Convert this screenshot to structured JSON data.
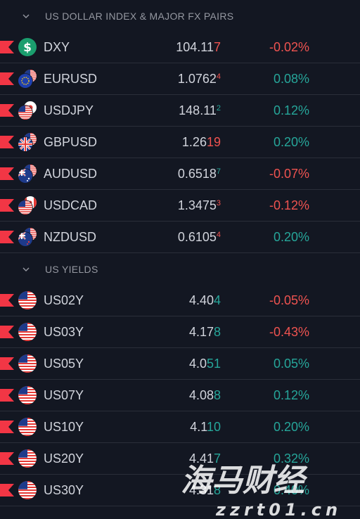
{
  "sections": [
    {
      "title": "US DOLLAR INDEX & MAJOR FX PAIRS",
      "rows": [
        {
          "symbol": "DXY",
          "icon": "dollar-icon",
          "p_main": "104.11",
          "p_last": "7",
          "p_sup": false,
          "last_dir": "down",
          "change": "-0.02%",
          "dir": "down"
        },
        {
          "symbol": "EURUSD",
          "icon": "eu-us-flag-icon",
          "p_main": "1.0762",
          "p_last": "4",
          "p_sup": true,
          "last_dir": "down",
          "change": "0.08%",
          "dir": "up"
        },
        {
          "symbol": "USDJPY",
          "icon": "us-jp-flag-icon",
          "p_main": "148.11",
          "p_last": "2",
          "p_sup": true,
          "last_dir": "up",
          "change": "0.12%",
          "dir": "up"
        },
        {
          "symbol": "GBPUSD",
          "icon": "gb-us-flag-icon",
          "p_main": "1.26",
          "p_last": "19",
          "p_sup": false,
          "last_dir": "down",
          "change": "0.20%",
          "dir": "up"
        },
        {
          "symbol": "AUDUSD",
          "icon": "au-us-flag-icon",
          "p_main": "0.6518",
          "p_last": "7",
          "p_sup": true,
          "last_dir": "up",
          "change": "-0.07%",
          "dir": "down"
        },
        {
          "symbol": "USDCAD",
          "icon": "us-ca-flag-icon",
          "p_main": "1.3475",
          "p_last": "3",
          "p_sup": true,
          "last_dir": "down",
          "change": "-0.12%",
          "dir": "down"
        },
        {
          "symbol": "NZDUSD",
          "icon": "nz-us-flag-icon",
          "p_main": "0.6105",
          "p_last": "4",
          "p_sup": true,
          "last_dir": "down",
          "change": "0.20%",
          "dir": "up"
        }
      ]
    },
    {
      "title": "US YIELDS",
      "rows": [
        {
          "symbol": "US02Y",
          "icon": "us-flag-icon",
          "p_main": "4.40",
          "p_last": "4",
          "p_sup": false,
          "last_dir": "up",
          "change": "-0.05%",
          "dir": "down"
        },
        {
          "symbol": "US03Y",
          "icon": "us-flag-icon",
          "p_main": "4.17",
          "p_last": "8",
          "p_sup": false,
          "last_dir": "up",
          "change": "-0.43%",
          "dir": "down"
        },
        {
          "symbol": "US05Y",
          "icon": "us-flag-icon",
          "p_main": "4.0",
          "p_last": "51",
          "p_sup": false,
          "last_dir": "up",
          "change": "0.05%",
          "dir": "up"
        },
        {
          "symbol": "US07Y",
          "icon": "us-flag-icon",
          "p_main": "4.08",
          "p_last": "8",
          "p_sup": false,
          "last_dir": "up",
          "change": "0.12%",
          "dir": "up"
        },
        {
          "symbol": "US10Y",
          "icon": "us-flag-icon",
          "p_main": "4.1",
          "p_last": "10",
          "p_sup": false,
          "last_dir": "up",
          "change": "0.20%",
          "dir": "up"
        },
        {
          "symbol": "US20Y",
          "icon": "us-flag-icon",
          "p_main": "4.41",
          "p_last": "7",
          "p_sup": false,
          "last_dir": "up",
          "change": "0.32%",
          "dir": "up"
        },
        {
          "symbol": "US30Y",
          "icon": "us-flag-icon",
          "p_main": "4.31",
          "p_last": "8",
          "p_sup": false,
          "last_dir": "up",
          "change": "0.40%",
          "dir": "up"
        }
      ]
    }
  ],
  "watermark": {
    "brand": "海马财经",
    "url": "zzrt01.cn"
  },
  "colors": {
    "background": "#131722",
    "up": "#26a69a",
    "down": "#ef5350",
    "marker": "#f23645",
    "text": "#d1d4dc",
    "header": "#9598a1"
  }
}
